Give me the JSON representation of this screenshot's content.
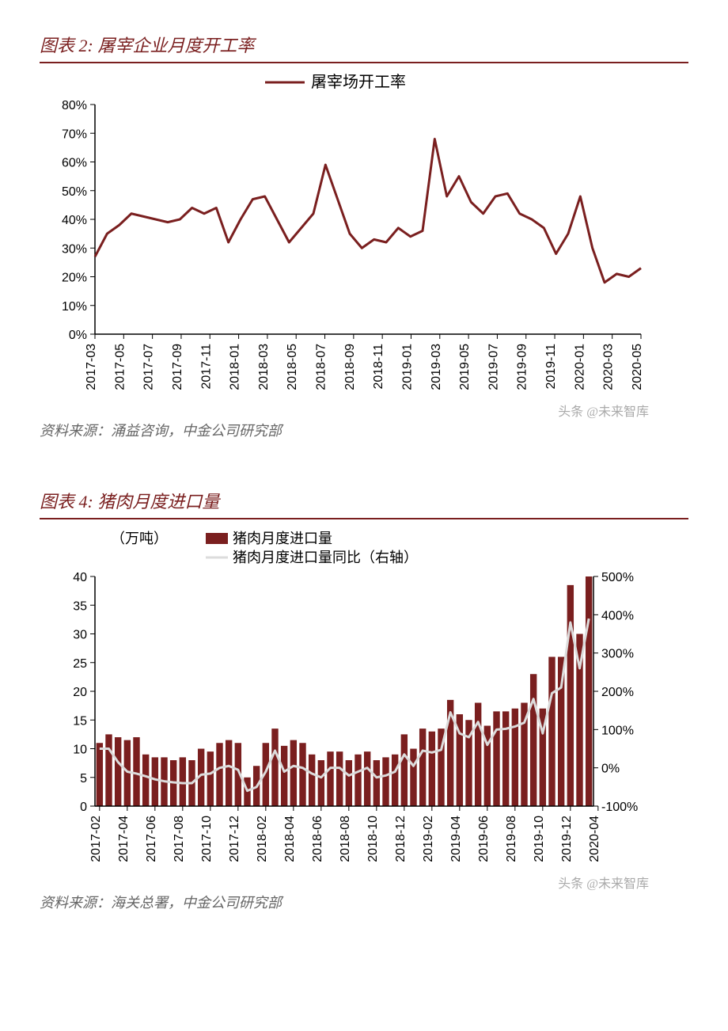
{
  "chart1": {
    "title": "图表 2: 屠宰企业月度开工率",
    "type": "line",
    "legend_label": "屠宰场开工率",
    "x_labels": [
      "2017-03",
      "2017-05",
      "2017-07",
      "2017-09",
      "2017-11",
      "2018-01",
      "2018-03",
      "2018-05",
      "2018-07",
      "2018-09",
      "2018-11",
      "2019-01",
      "2019-03",
      "2019-05",
      "2019-07",
      "2019-09",
      "2019-11",
      "2020-01",
      "2020-03",
      "2020-05"
    ],
    "y_ticks": [
      0,
      10,
      20,
      30,
      40,
      50,
      60,
      70,
      80
    ],
    "y_suffix": "%",
    "ylim": [
      0,
      80
    ],
    "series_values": [
      27,
      35,
      38,
      42,
      41,
      40,
      39,
      40,
      44,
      42,
      44,
      32,
      40,
      47,
      48,
      40,
      32,
      37,
      42,
      59,
      47,
      35,
      30,
      33,
      32,
      37,
      34,
      36,
      68,
      48,
      55,
      46,
      42,
      48,
      49,
      42,
      40,
      37,
      28,
      35,
      48,
      30,
      18,
      21,
      20,
      23
    ],
    "line_color": "#7a1f1f",
    "line_width": 3,
    "axis_color": "#000000",
    "tick_fontsize": 16,
    "source": "资料来源：涌益咨询，中金公司研究部",
    "watermark": "头条 @未来智库"
  },
  "chart2": {
    "title": "图表 4: 猪肉月度进口量",
    "type": "bar+line",
    "y1_unit_label": "（万吨）",
    "legend_bar": "猪肉月度进口量",
    "legend_line": "猪肉月度进口量同比（右轴）",
    "x_labels": [
      "2017-02",
      "2017-04",
      "2017-06",
      "2017-08",
      "2017-10",
      "2017-12",
      "2018-02",
      "2018-04",
      "2018-06",
      "2018-08",
      "2018-10",
      "2018-12",
      "2019-02",
      "2019-04",
      "2019-06",
      "2019-08",
      "2019-10",
      "2019-12",
      "2020-04"
    ],
    "y1_ticks": [
      0,
      5,
      10,
      15,
      20,
      25,
      30,
      35,
      40
    ],
    "y1_lim": [
      0,
      40
    ],
    "y2_ticks": [
      -100,
      0,
      100,
      200,
      300,
      400,
      500
    ],
    "y2_suffix": "%",
    "y2_lim": [
      -100,
      500
    ],
    "bar_values": [
      11,
      12.5,
      12,
      11.5,
      12,
      9,
      8.5,
      8.5,
      8,
      8.5,
      8,
      10,
      9.5,
      11,
      11.5,
      11,
      5,
      7,
      11,
      13.5,
      10.5,
      11.5,
      11,
      9,
      8,
      9.5,
      9.5,
      8,
      9,
      9.5,
      8,
      8.5,
      9,
      12.5,
      10,
      13.5,
      13,
      13.5,
      18.5,
      16,
      15,
      18,
      14,
      16.5,
      16.5,
      17,
      18,
      23,
      17,
      26,
      26,
      38.5,
      30,
      40
    ],
    "line_values": [
      50,
      50,
      15,
      -10,
      -15,
      -22,
      -30,
      -35,
      -38,
      -40,
      -40,
      -18,
      -15,
      0,
      5,
      -5,
      -60,
      -50,
      -10,
      45,
      -10,
      5,
      0,
      -15,
      -25,
      0,
      0,
      -20,
      -10,
      0,
      -25,
      -20,
      -10,
      35,
      5,
      45,
      40,
      47,
      145,
      90,
      80,
      120,
      60,
      100,
      102,
      108,
      118,
      180,
      90,
      195,
      210,
      380,
      260,
      390
    ],
    "bar_color": "#7a1f1f",
    "line_color": "#dcdcdc",
    "line_width": 3,
    "axis_color": "#000000",
    "tick_fontsize": 16,
    "source": "资料来源：海关总署，中金公司研究部",
    "watermark": "头条 @未来智库"
  }
}
